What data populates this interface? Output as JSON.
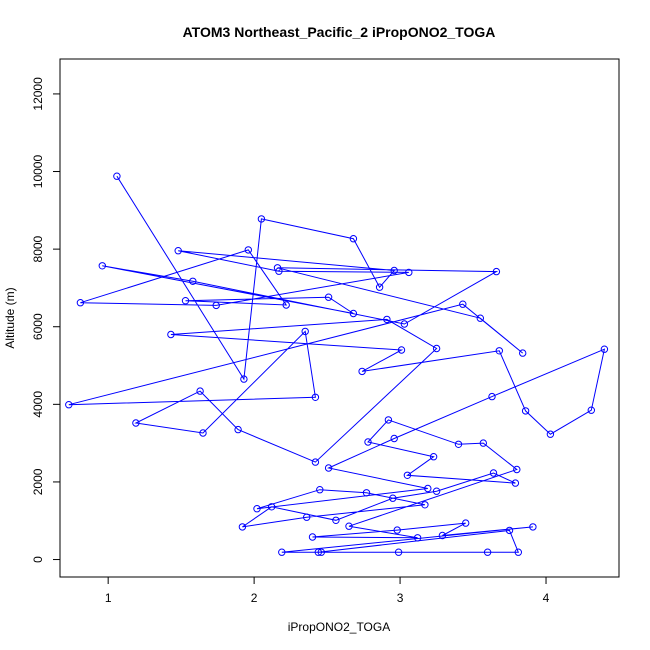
{
  "chart_data": {
    "type": "line",
    "title": "ATOM3 Northeast_Pacific_2 iPropONO2_TOGA",
    "xlabel": "iPropONO2_TOGA",
    "ylabel": "Altitude (m)",
    "xlim": [
      0.67,
      4.5
    ],
    "ylim": [
      -450,
      12900
    ],
    "x_ticks": [
      1,
      2,
      3,
      4
    ],
    "y_ticks": [
      0,
      2000,
      4000,
      6000,
      8000,
      10000,
      12000
    ],
    "x_tick_labels": [
      "1",
      "2",
      "3",
      "4"
    ],
    "y_tick_labels": [
      "0",
      "2000",
      "4000",
      "6000",
      "8000",
      "10000",
      "12000"
    ],
    "grid": false,
    "color": "#0000ff",
    "series": [
      {
        "marker": "open-circle",
        "x": [
          1.06,
          1.93,
          2.05,
          2.68,
          2.86,
          2.96,
          1.48,
          2.17,
          3.06,
          1.74,
          0.81,
          1.96,
          2.22,
          1.53,
          2.51,
          2.68,
          0.96,
          1.58,
          3.03,
          3.66,
          2.16,
          3.55,
          3.84,
          3.43,
          0.73,
          2.42,
          2.35,
          1.65,
          1.19,
          1.63,
          1.89,
          2.42,
          3.25,
          2.91,
          1.43,
          3.01,
          2.74,
          3.68,
          3.86,
          4.03,
          4.31,
          4.4,
          3.63,
          2.96,
          2.51,
          3.19,
          2.02,
          2.45,
          2.77,
          3.17,
          2.36,
          1.92,
          2.12,
          2.56,
          2.95,
          3.25,
          3.64,
          3.79,
          3.05,
          3.23,
          2.78,
          2.92,
          3.4,
          3.57,
          3.8,
          2.65,
          3.12,
          2.4,
          2.98,
          3.45,
          3.29,
          3.91,
          2.19,
          2.46,
          2.99,
          3.6,
          3.81,
          3.75,
          2.44
        ],
        "y": [
          9880,
          4650,
          8780,
          8270,
          7020,
          7450,
          7960,
          7430,
          7400,
          6550,
          6620,
          7980,
          6560,
          6670,
          6760,
          6340,
          7570,
          7170,
          6070,
          7420,
          7520,
          6220,
          5320,
          6580,
          3990,
          4180,
          5880,
          3260,
          3520,
          4340,
          3350,
          2510,
          5440,
          6190,
          5800,
          5400,
          4850,
          5380,
          3830,
          3230,
          3850,
          5420,
          4200,
          3120,
          2360,
          1830,
          1310,
          1800,
          1720,
          1410,
          1090,
          840,
          1360,
          1010,
          1580,
          1760,
          2230,
          1970,
          2170,
          2650,
          3030,
          3600,
          2970,
          3000,
          2320,
          860,
          560,
          580,
          760,
          940,
          620,
          840,
          190,
          190,
          190,
          190,
          190,
          750,
          190
        ]
      }
    ]
  }
}
